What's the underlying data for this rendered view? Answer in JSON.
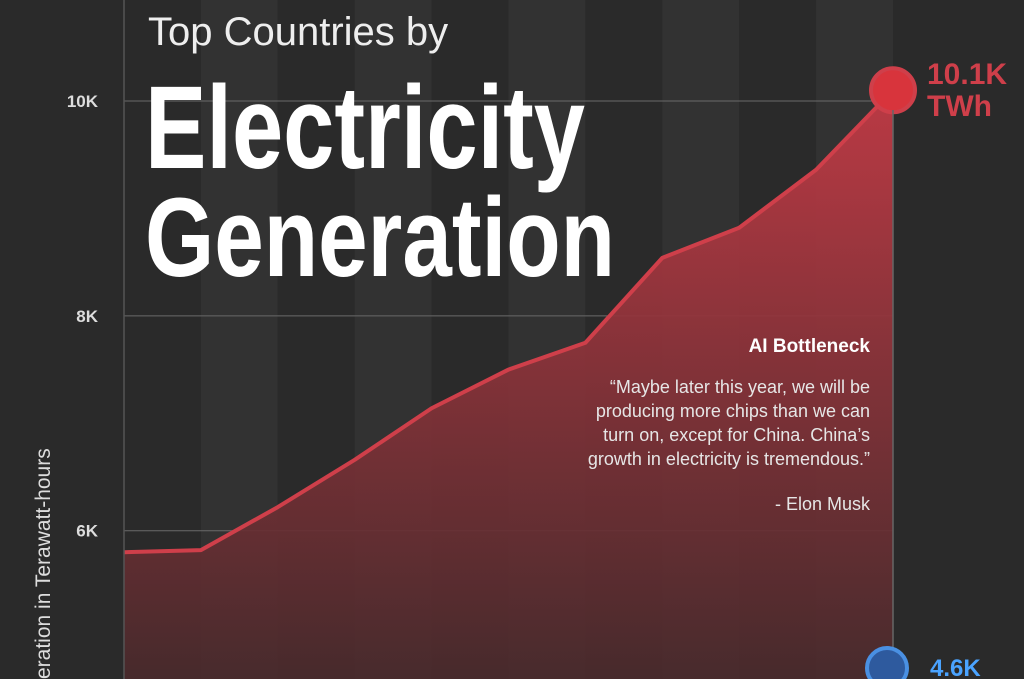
{
  "chart_data": {
    "type": "area",
    "title_lines": [
      "Top Countries by",
      "Electricity",
      "Generation"
    ],
    "y_axis_label": "eration in Terawatt-hours",
    "categories": [
      null,
      null,
      null,
      null,
      null,
      null,
      null,
      null,
      null,
      null,
      null
    ],
    "series": [
      {
        "name": null,
        "color": "#cf3f4a",
        "values": [
          5800,
          5820,
          6220,
          6660,
          7140,
          7500,
          7750,
          8540,
          8820,
          9360,
          10100
        ],
        "value_labels": [
          null,
          null,
          null,
          null,
          null,
          null,
          null,
          null,
          null,
          null,
          "10.1K"
        ]
      }
    ],
    "unit_label": "TWh",
    "other_label": "4.6K",
    "ylim": [
      4620,
      10940
    ],
    "yticks": [
      {
        "value": 6000,
        "label": "6K"
      },
      {
        "value": 8000,
        "label": "8K"
      },
      {
        "value": 10000,
        "label": "10K"
      }
    ],
    "grid": true,
    "annotation": {
      "title": "AI Bottleneck",
      "lines": [
        "“Maybe later this year, we will be",
        "producing more chips than we can",
        "turn on, except for China. China’s",
        "growth in electricity is tremendous.”"
      ],
      "author": "- Elon Musk"
    }
  }
}
